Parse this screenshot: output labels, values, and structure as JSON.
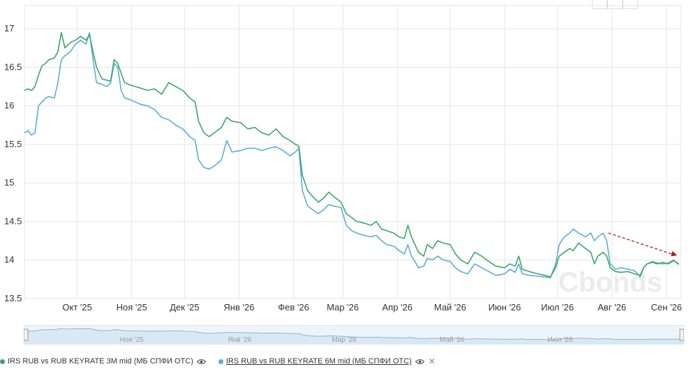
{
  "chart_data": {
    "type": "line",
    "y_ticks": [
      "13.5",
      "14",
      "14.5",
      "15",
      "15.5",
      "16",
      "16.5",
      "17"
    ],
    "y_tick_values": [
      13.5,
      14,
      14.5,
      15,
      15.5,
      16,
      16.5,
      17
    ],
    "x_ticks": [
      "Окт '25",
      "Ноя '25",
      "Дек '25",
      "Янв '26",
      "Фев '26",
      "Мар '26",
      "Апр '26",
      "Май '26",
      "Июн '26",
      "Июл '26",
      "Авг '26",
      "Сен '26"
    ],
    "x_tick_dates": [
      "2025-10-01",
      "2025-11-01",
      "2025-12-01",
      "2026-01-01",
      "2026-02-01",
      "2026-03-01",
      "2026-04-01",
      "2026-05-01",
      "2026-06-01",
      "2026-07-01",
      "2026-08-01",
      "2026-09-01"
    ],
    "xlim": [
      "2025-09-01",
      "2026-09-09"
    ],
    "ylim": [
      13.5,
      17.3
    ],
    "grid": true,
    "legend_position": "bottom-left",
    "series": [
      {
        "name": "IRS RUB vs RUB KEYRATE 3M mid (МБ СПФИ ОТС)",
        "color": "#3aa66a",
        "points": [
          [
            "2025-09-01",
            16.2
          ],
          [
            "2025-09-03",
            16.22
          ],
          [
            "2025-09-05",
            16.2
          ],
          [
            "2025-09-07",
            16.25
          ],
          [
            "2025-09-09",
            16.4
          ],
          [
            "2025-09-11",
            16.52
          ],
          [
            "2025-09-13",
            16.55
          ],
          [
            "2025-09-15",
            16.6
          ],
          [
            "2025-09-18",
            16.62
          ],
          [
            "2025-09-20",
            16.7
          ],
          [
            "2025-09-22",
            16.95
          ],
          [
            "2025-09-24",
            16.75
          ],
          [
            "2025-09-27",
            16.82
          ],
          [
            "2025-09-30",
            16.85
          ],
          [
            "2025-10-03",
            16.9
          ],
          [
            "2025-10-06",
            16.85
          ],
          [
            "2025-10-08",
            16.92
          ],
          [
            "2025-10-10",
            16.7
          ],
          [
            "2025-10-12",
            16.5
          ],
          [
            "2025-10-15",
            16.35
          ],
          [
            "2025-10-18",
            16.33
          ],
          [
            "2025-10-20",
            16.32
          ],
          [
            "2025-10-22",
            16.6
          ],
          [
            "2025-10-24",
            16.55
          ],
          [
            "2025-10-26",
            16.42
          ],
          [
            "2025-10-28",
            16.3
          ],
          [
            "2025-10-31",
            16.27
          ],
          [
            "2025-11-03",
            16.25
          ],
          [
            "2025-11-06",
            16.23
          ],
          [
            "2025-11-10",
            16.2
          ],
          [
            "2025-11-14",
            16.22
          ],
          [
            "2025-11-18",
            16.15
          ],
          [
            "2025-11-22",
            16.3
          ],
          [
            "2025-11-26",
            16.25
          ],
          [
            "2025-11-30",
            16.2
          ],
          [
            "2025-12-04",
            16.1
          ],
          [
            "2025-12-07",
            16.05
          ],
          [
            "2025-12-09",
            15.8
          ],
          [
            "2025-12-12",
            15.65
          ],
          [
            "2025-12-15",
            15.6
          ],
          [
            "2025-12-18",
            15.65
          ],
          [
            "2025-12-22",
            15.72
          ],
          [
            "2025-12-25",
            15.85
          ],
          [
            "2025-12-28",
            15.8
          ],
          [
            "2026-01-02",
            15.78
          ],
          [
            "2026-01-06",
            15.7
          ],
          [
            "2026-01-10",
            15.72
          ],
          [
            "2026-01-14",
            15.65
          ],
          [
            "2026-01-18",
            15.62
          ],
          [
            "2026-01-22",
            15.7
          ],
          [
            "2026-01-26",
            15.6
          ],
          [
            "2026-01-30",
            15.55
          ],
          [
            "2026-02-02",
            15.5
          ],
          [
            "2026-02-04",
            15.48
          ],
          [
            "2026-02-06",
            15.1
          ],
          [
            "2026-02-09",
            14.9
          ],
          [
            "2026-02-12",
            14.82
          ],
          [
            "2026-02-15",
            14.75
          ],
          [
            "2026-02-18",
            14.8
          ],
          [
            "2026-02-21",
            14.88
          ],
          [
            "2026-02-24",
            14.82
          ],
          [
            "2026-02-28",
            14.75
          ],
          [
            "2026-03-03",
            14.6
          ],
          [
            "2026-03-06",
            14.55
          ],
          [
            "2026-03-09",
            14.5
          ],
          [
            "2026-03-13",
            14.48
          ],
          [
            "2026-03-17",
            14.45
          ],
          [
            "2026-03-20",
            14.5
          ],
          [
            "2026-03-23",
            14.4
          ],
          [
            "2026-03-26",
            14.38
          ],
          [
            "2026-03-30",
            14.35
          ],
          [
            "2026-04-02",
            14.3
          ],
          [
            "2026-04-05",
            14.28
          ],
          [
            "2026-04-07",
            14.45
          ],
          [
            "2026-04-09",
            14.3
          ],
          [
            "2026-04-11",
            14.2
          ],
          [
            "2026-04-13",
            14.1
          ],
          [
            "2026-04-16",
            14.05
          ],
          [
            "2026-04-18",
            14.2
          ],
          [
            "2026-04-21",
            14.15
          ],
          [
            "2026-04-24",
            14.25
          ],
          [
            "2026-04-27",
            14.22
          ],
          [
            "2026-05-01",
            14.2
          ],
          [
            "2026-05-04",
            14.08
          ],
          [
            "2026-05-07",
            14.0
          ],
          [
            "2026-05-11",
            13.95
          ],
          [
            "2026-05-15",
            14.1
          ],
          [
            "2026-05-19",
            14.05
          ],
          [
            "2026-05-23",
            13.98
          ],
          [
            "2026-05-27",
            13.92
          ],
          [
            "2026-06-01",
            13.9
          ],
          [
            "2026-06-04",
            13.95
          ],
          [
            "2026-06-07",
            13.92
          ],
          [
            "2026-06-09",
            14.05
          ],
          [
            "2026-06-11",
            13.88
          ],
          [
            "2026-06-15",
            13.85
          ],
          [
            "2026-06-20",
            13.82
          ],
          [
            "2026-06-24",
            13.8
          ],
          [
            "2026-06-27",
            13.78
          ],
          [
            "2026-06-30",
            13.9
          ],
          [
            "2026-07-02",
            14.05
          ],
          [
            "2026-07-05",
            14.1
          ],
          [
            "2026-07-08",
            14.15
          ],
          [
            "2026-07-10",
            14.12
          ],
          [
            "2026-07-13",
            14.22
          ],
          [
            "2026-07-17",
            14.15
          ],
          [
            "2026-07-20",
            14.1
          ],
          [
            "2026-07-22",
            13.95
          ],
          [
            "2026-07-24",
            14.05
          ],
          [
            "2026-07-27",
            14.1
          ],
          [
            "2026-07-29",
            14.05
          ],
          [
            "2026-07-31",
            13.9
          ],
          [
            "2026-08-03",
            13.85
          ],
          [
            "2026-08-06",
            13.84
          ],
          [
            "2026-08-10",
            13.85
          ],
          [
            "2026-08-14",
            13.82
          ],
          [
            "2026-08-17",
            13.8
          ],
          [
            "2026-08-19",
            13.9
          ],
          [
            "2026-08-21",
            13.95
          ],
          [
            "2026-08-24",
            13.97
          ],
          [
            "2026-08-27",
            13.95
          ],
          [
            "2026-08-30",
            13.97
          ],
          [
            "2026-09-02",
            13.95
          ],
          [
            "2026-09-05",
            13.99
          ],
          [
            "2026-09-08",
            13.95
          ]
        ]
      },
      {
        "name": "IRS RUB vs RUB KEYRATE 6M mid (МБ СПФИ ОТС)",
        "color": "#5aaed4",
        "points": [
          [
            "2025-09-01",
            15.65
          ],
          [
            "2025-09-03",
            15.68
          ],
          [
            "2025-09-05",
            15.62
          ],
          [
            "2025-09-07",
            15.65
          ],
          [
            "2025-09-09",
            16.0
          ],
          [
            "2025-09-11",
            16.05
          ],
          [
            "2025-09-13",
            16.1
          ],
          [
            "2025-09-15",
            16.12
          ],
          [
            "2025-09-18",
            16.1
          ],
          [
            "2025-09-20",
            16.3
          ],
          [
            "2025-09-22",
            16.6
          ],
          [
            "2025-09-24",
            16.65
          ],
          [
            "2025-09-27",
            16.7
          ],
          [
            "2025-09-30",
            16.8
          ],
          [
            "2025-10-03",
            16.85
          ],
          [
            "2025-10-06",
            16.8
          ],
          [
            "2025-10-08",
            16.95
          ],
          [
            "2025-10-10",
            16.6
          ],
          [
            "2025-10-12",
            16.3
          ],
          [
            "2025-10-15",
            16.28
          ],
          [
            "2025-10-18",
            16.25
          ],
          [
            "2025-10-20",
            16.3
          ],
          [
            "2025-10-22",
            16.55
          ],
          [
            "2025-10-24",
            16.5
          ],
          [
            "2025-10-26",
            16.2
          ],
          [
            "2025-10-28",
            16.1
          ],
          [
            "2025-10-31",
            16.08
          ],
          [
            "2025-11-03",
            16.05
          ],
          [
            "2025-11-06",
            16.02
          ],
          [
            "2025-11-10",
            16.0
          ],
          [
            "2025-11-14",
            15.95
          ],
          [
            "2025-11-18",
            15.85
          ],
          [
            "2025-11-22",
            15.82
          ],
          [
            "2025-11-26",
            15.75
          ],
          [
            "2025-11-30",
            15.7
          ],
          [
            "2025-12-04",
            15.6
          ],
          [
            "2025-12-07",
            15.55
          ],
          [
            "2025-12-09",
            15.3
          ],
          [
            "2025-12-12",
            15.2
          ],
          [
            "2025-12-15",
            15.18
          ],
          [
            "2025-12-18",
            15.22
          ],
          [
            "2025-12-22",
            15.3
          ],
          [
            "2025-12-25",
            15.55
          ],
          [
            "2025-12-28",
            15.4
          ],
          [
            "2026-01-02",
            15.42
          ],
          [
            "2026-01-06",
            15.45
          ],
          [
            "2026-01-10",
            15.45
          ],
          [
            "2026-01-14",
            15.42
          ],
          [
            "2026-01-18",
            15.45
          ],
          [
            "2026-01-22",
            15.47
          ],
          [
            "2026-01-26",
            15.42
          ],
          [
            "2026-01-30",
            15.35
          ],
          [
            "2026-02-02",
            15.4
          ],
          [
            "2026-02-04",
            15.45
          ],
          [
            "2026-02-06",
            14.9
          ],
          [
            "2026-02-09",
            14.7
          ],
          [
            "2026-02-12",
            14.65
          ],
          [
            "2026-02-15",
            14.6
          ],
          [
            "2026-02-18",
            14.65
          ],
          [
            "2026-02-21",
            14.72
          ],
          [
            "2026-02-24",
            14.7
          ],
          [
            "2026-02-28",
            14.68
          ],
          [
            "2026-03-03",
            14.45
          ],
          [
            "2026-03-06",
            14.38
          ],
          [
            "2026-03-09",
            14.35
          ],
          [
            "2026-03-13",
            14.32
          ],
          [
            "2026-03-17",
            14.3
          ],
          [
            "2026-03-20",
            14.32
          ],
          [
            "2026-03-23",
            14.25
          ],
          [
            "2026-03-26",
            14.2
          ],
          [
            "2026-03-30",
            14.18
          ],
          [
            "2026-04-02",
            14.12
          ],
          [
            "2026-04-05",
            14.08
          ],
          [
            "2026-04-07",
            14.2
          ],
          [
            "2026-04-09",
            14.05
          ],
          [
            "2026-04-11",
            13.98
          ],
          [
            "2026-04-13",
            13.9
          ],
          [
            "2026-04-16",
            13.92
          ],
          [
            "2026-04-18",
            14.02
          ],
          [
            "2026-04-21",
            14.0
          ],
          [
            "2026-04-24",
            14.05
          ],
          [
            "2026-04-27",
            14.0
          ],
          [
            "2026-05-01",
            13.98
          ],
          [
            "2026-05-04",
            13.9
          ],
          [
            "2026-05-07",
            13.85
          ],
          [
            "2026-05-11",
            13.82
          ],
          [
            "2026-05-15",
            13.95
          ],
          [
            "2026-05-19",
            13.9
          ],
          [
            "2026-05-23",
            13.85
          ],
          [
            "2026-05-27",
            13.8
          ],
          [
            "2026-06-01",
            13.82
          ],
          [
            "2026-06-04",
            13.88
          ],
          [
            "2026-06-07",
            13.84
          ],
          [
            "2026-06-09",
            13.95
          ],
          [
            "2026-06-11",
            13.82
          ],
          [
            "2026-06-15",
            13.8
          ],
          [
            "2026-06-20",
            13.79
          ],
          [
            "2026-06-24",
            13.78
          ],
          [
            "2026-06-27",
            13.77
          ],
          [
            "2026-06-30",
            13.95
          ],
          [
            "2026-07-02",
            14.2
          ],
          [
            "2026-07-05",
            14.3
          ],
          [
            "2026-07-08",
            14.35
          ],
          [
            "2026-07-10",
            14.4
          ],
          [
            "2026-07-13",
            14.35
          ],
          [
            "2026-07-17",
            14.3
          ],
          [
            "2026-07-20",
            14.35
          ],
          [
            "2026-07-22",
            14.25
          ],
          [
            "2026-07-24",
            14.3
          ],
          [
            "2026-07-27",
            14.35
          ],
          [
            "2026-07-29",
            14.25
          ],
          [
            "2026-07-31",
            13.95
          ],
          [
            "2026-08-03",
            13.88
          ],
          [
            "2026-08-06",
            13.9
          ],
          [
            "2026-08-10",
            13.88
          ],
          [
            "2026-08-14",
            13.86
          ],
          [
            "2026-08-17",
            13.78
          ],
          [
            "2026-08-19",
            13.9
          ],
          [
            "2026-08-21",
            13.95
          ],
          [
            "2026-08-24",
            13.98
          ],
          [
            "2026-08-27",
            13.96
          ],
          [
            "2026-08-30",
            13.95
          ],
          [
            "2026-09-02",
            13.96
          ],
          [
            "2026-09-05",
            14.0
          ],
          [
            "2026-09-08",
            13.94
          ]
        ]
      }
    ],
    "annotation": {
      "type": "arrow",
      "color": "#a61c1c",
      "from": [
        "2026-07-30",
        14.35
      ],
      "to": [
        "2026-09-07",
        14.06
      ]
    }
  },
  "watermark": "Cbonds",
  "navigator": {
    "labels": [
      "Ноя '25",
      "Янв '26",
      "Мар '26",
      "Май '26",
      "Июл '26"
    ],
    "label_dates": [
      "2025-11-01",
      "2026-01-01",
      "2026-03-01",
      "2026-05-01",
      "2026-07-01"
    ]
  },
  "legend": {
    "items": [
      {
        "label": "IRS RUB vs RUB KEYRATE 3M mid (МБ СПФИ ОТС)",
        "color": "#3aa66a"
      },
      {
        "label": "IRS RUB vs RUB KEYRATE 6M mid (МБ СПФИ ОТС)",
        "color": "#5aaed4"
      }
    ],
    "close_glyph": "✕"
  }
}
